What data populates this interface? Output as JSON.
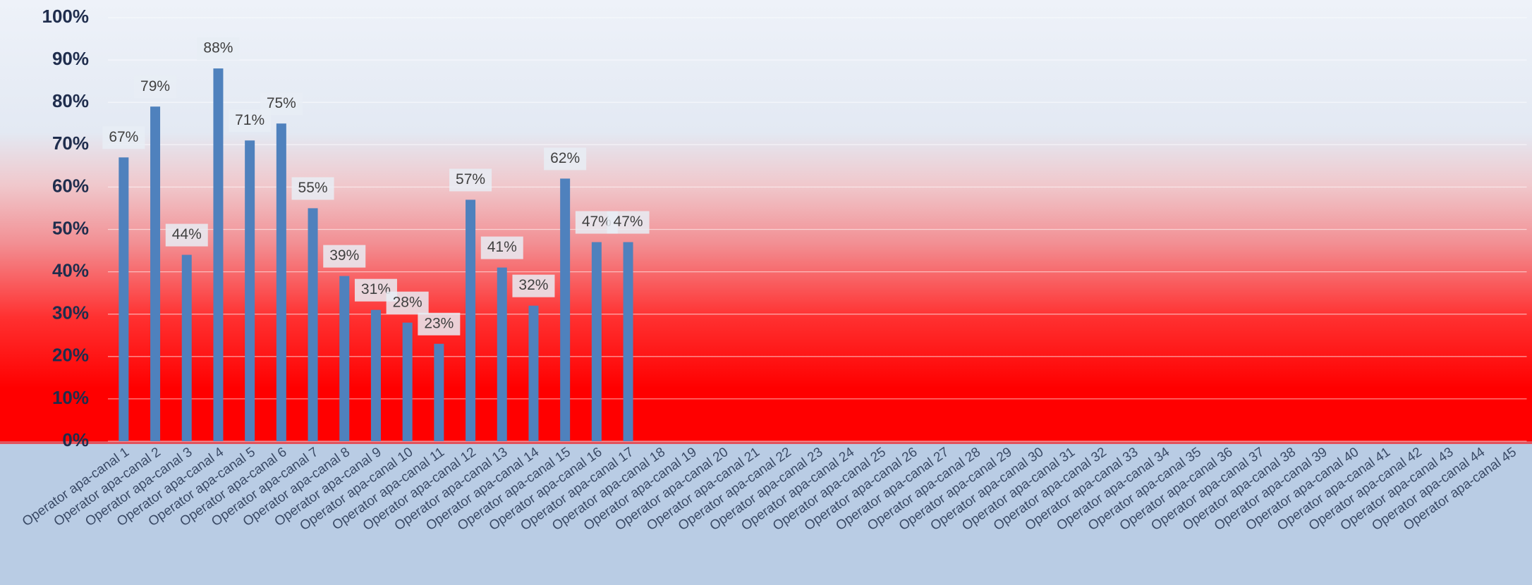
{
  "chart_data": {
    "type": "bar",
    "categories": [
      "Operator apa-canal 1",
      "Operator apa-canal 2",
      "Operator apa-canal 3",
      "Operator apa-canal 4",
      "Operator apa-canal 5",
      "Operator apa-canal 6",
      "Operator apa-canal 7",
      "Operator apa-canal 8",
      "Operator apa-canal 9",
      "Operator apa-canal 10",
      "Operator apa-canal 11",
      "Operator apa-canal 12",
      "Operator apa-canal 13",
      "Operator apa-canal 14",
      "Operator apa-canal 15",
      "Operator apa-canal 16",
      "Operator apa-canal 17",
      "Operator apa-canal 18",
      "Operator apa-canal 19",
      "Operator apa-canal 20",
      "Operator apa-canal 21",
      "Operator apa-canal 22",
      "Operator apa-canal 23",
      "Operator apa-canal 24",
      "Operator apa-canal 25",
      "Operator apa-canal 26",
      "Operator apa-canal 27",
      "Operator apa-canal 28",
      "Operator apa-canal 29",
      "Operator apa-canal 30",
      "Operator apa-canal 31",
      "Operator apa-canal 32",
      "Operator apa-canal 33",
      "Operator apa-canal 34",
      "Operator apa-canal 35",
      "Operator apa-canal 36",
      "Operator apa-canal 37",
      "Operator apa-canal 38",
      "Operator apa-canal 39",
      "Operator apa-canal 40",
      "Operator apa-canal 41",
      "Operator apa-canal 42",
      "Operator apa-canal 43",
      "Operator apa-canal 44",
      "Operator apa-canal 45"
    ],
    "values": [
      67,
      79,
      44,
      88,
      71,
      75,
      55,
      39,
      31,
      28,
      23,
      57,
      41,
      32,
      62,
      47,
      47,
      null,
      null,
      null,
      null,
      null,
      null,
      null,
      null,
      null,
      null,
      null,
      null,
      null,
      null,
      null,
      null,
      null,
      null,
      null,
      null,
      null,
      null,
      null,
      null,
      null,
      null,
      null,
      null
    ],
    "value_labels": [
      "67%",
      "79%",
      "44%",
      "88%",
      "71%",
      "75%",
      "55%",
      "39%",
      "31%",
      "28%",
      "23%",
      "57%",
      "41%",
      "32%",
      "62%",
      "47%",
      "47%",
      null,
      null,
      null,
      null,
      null,
      null,
      null,
      null,
      null,
      null,
      null,
      null,
      null,
      null,
      null,
      null,
      null,
      null,
      null,
      null,
      null,
      null,
      null,
      null,
      null,
      null,
      null,
      null
    ],
    "color": "#4f81bd",
    "ylim": [
      0,
      100
    ],
    "yticks": [
      {
        "value": 0,
        "label": "0%"
      },
      {
        "value": 10,
        "label": "10%"
      },
      {
        "value": 20,
        "label": "20%"
      },
      {
        "value": 30,
        "label": "30%"
      },
      {
        "value": 40,
        "label": "40%"
      },
      {
        "value": 50,
        "label": "50%"
      },
      {
        "value": 60,
        "label": "60%"
      },
      {
        "value": 70,
        "label": "70%"
      },
      {
        "value": 80,
        "label": "80%"
      },
      {
        "value": 90,
        "label": "90%"
      },
      {
        "value": 100,
        "label": "100%"
      }
    ],
    "grid": true
  }
}
